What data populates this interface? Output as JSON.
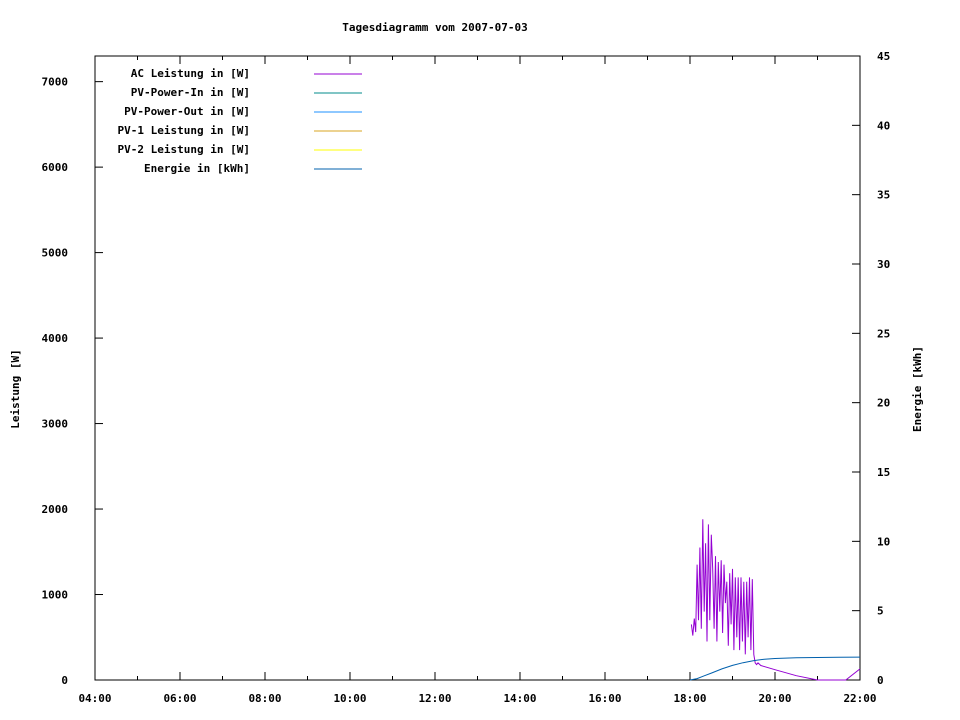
{
  "chart_data": {
    "type": "line",
    "title": "Tagesdiagramm vom 2007-07-03",
    "xlabel": "",
    "ylabel": "Leistung [W]",
    "y2label": "Energie [kWh]",
    "xlim": [
      "04:00",
      "22:00"
    ],
    "ylim": [
      0,
      7300
    ],
    "y2lim": [
      0,
      45
    ],
    "x_ticks": [
      "04:00",
      "06:00",
      "08:00",
      "10:00",
      "12:00",
      "14:00",
      "16:00",
      "18:00",
      "20:00",
      "22:00"
    ],
    "y_ticks": [
      0,
      1000,
      2000,
      3000,
      4000,
      5000,
      6000,
      7000
    ],
    "y2_ticks": [
      0,
      5,
      10,
      15,
      20,
      25,
      30,
      35,
      40,
      45
    ],
    "legend_position": "top-left",
    "grid": false,
    "series": [
      {
        "name": "AC Leistung in [W]",
        "color": "#9400d3",
        "axis": "y",
        "points": [
          [
            "18:02",
            650
          ],
          [
            "18:04",
            520
          ],
          [
            "18:06",
            720
          ],
          [
            "18:08",
            560
          ],
          [
            "18:10",
            1350
          ],
          [
            "18:12",
            700
          ],
          [
            "18:14",
            1550
          ],
          [
            "18:16",
            600
          ],
          [
            "18:18",
            1880
          ],
          [
            "18:20",
            800
          ],
          [
            "18:22",
            1600
          ],
          [
            "18:24",
            450
          ],
          [
            "18:26",
            1820
          ],
          [
            "18:28",
            700
          ],
          [
            "18:30",
            1700
          ],
          [
            "18:32",
            1300
          ],
          [
            "18:34",
            600
          ],
          [
            "18:36",
            1450
          ],
          [
            "18:38",
            450
          ],
          [
            "18:40",
            1380
          ],
          [
            "18:42",
            800
          ],
          [
            "18:44",
            1400
          ],
          [
            "18:46",
            550
          ],
          [
            "18:48",
            1350
          ],
          [
            "18:50",
            900
          ],
          [
            "18:52",
            1150
          ],
          [
            "18:54",
            400
          ],
          [
            "18:56",
            1250
          ],
          [
            "18:58",
            650
          ],
          [
            "19:00",
            1300
          ],
          [
            "19:02",
            350
          ],
          [
            "19:04",
            1200
          ],
          [
            "19:06",
            500
          ],
          [
            "19:08",
            1200
          ],
          [
            "19:10",
            350
          ],
          [
            "19:12",
            1200
          ],
          [
            "19:14",
            450
          ],
          [
            "19:16",
            1150
          ],
          [
            "19:18",
            300
          ],
          [
            "19:20",
            1150
          ],
          [
            "19:22",
            500
          ],
          [
            "19:24",
            1200
          ],
          [
            "19:26",
            350
          ],
          [
            "19:28",
            1180
          ],
          [
            "19:30",
            300
          ],
          [
            "19:32",
            200
          ],
          [
            "19:34",
            180
          ],
          [
            "19:36",
            200
          ],
          [
            "19:40",
            170
          ],
          [
            "20:00",
            120
          ],
          [
            "20:30",
            50
          ],
          [
            "21:00",
            0
          ],
          [
            "21:40",
            0
          ],
          [
            "22:00",
            130
          ]
        ]
      },
      {
        "name": "PV-Power-In in [W]",
        "color": "#008b8b",
        "axis": "y",
        "points": []
      },
      {
        "name": "PV-Power-Out in [W]",
        "color": "#1e90ff",
        "axis": "y",
        "points": []
      },
      {
        "name": "PV-1 Leistung in [W]",
        "color": "#daa520",
        "axis": "y",
        "points": []
      },
      {
        "name": "PV-2 Leistung in [W]",
        "color": "#ffff00",
        "axis": "y",
        "points": []
      },
      {
        "name": "Energie in [kWh]",
        "color": "#0060ad",
        "axis": "y2",
        "points": [
          [
            "18:00",
            0
          ],
          [
            "18:10",
            0.1
          ],
          [
            "18:20",
            0.3
          ],
          [
            "18:30",
            0.5
          ],
          [
            "18:45",
            0.8
          ],
          [
            "19:00",
            1.05
          ],
          [
            "19:15",
            1.25
          ],
          [
            "19:30",
            1.4
          ],
          [
            "19:45",
            1.5
          ],
          [
            "20:00",
            1.55
          ],
          [
            "20:30",
            1.6
          ],
          [
            "21:00",
            1.62
          ],
          [
            "21:30",
            1.64
          ],
          [
            "22:00",
            1.65
          ]
        ]
      }
    ]
  }
}
